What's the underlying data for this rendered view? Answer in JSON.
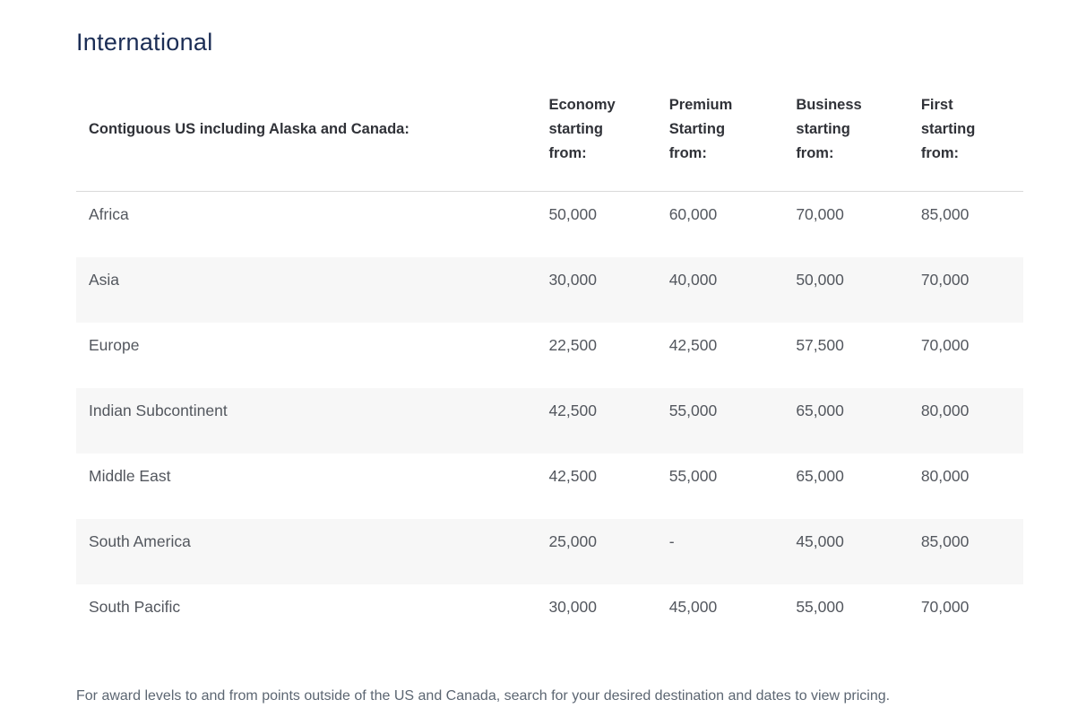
{
  "section": {
    "title": "International",
    "footnote": "For award levels to and from points outside of the US and Canada, search for your desired destination and dates to view pricing."
  },
  "table": {
    "region_header": "Contiguous US including Alaska and Canada:",
    "columns": [
      "Economy starting from:",
      "Premium Starting from:",
      "Business starting from:",
      "First starting from:"
    ],
    "rows": [
      {
        "region": "Africa",
        "values": [
          "50,000",
          "60,000",
          "70,000",
          "85,000"
        ]
      },
      {
        "region": "Asia",
        "values": [
          "30,000",
          "40,000",
          "50,000",
          "70,000"
        ]
      },
      {
        "region": "Europe",
        "values": [
          "22,500",
          "42,500",
          "57,500",
          "70,000"
        ]
      },
      {
        "region": "Indian Subcontinent",
        "values": [
          "42,500",
          "55,000",
          "65,000",
          "80,000"
        ]
      },
      {
        "region": "Middle East",
        "values": [
          "42,500",
          "55,000",
          "65,000",
          "80,000"
        ]
      },
      {
        "region": "South America",
        "values": [
          "25,000",
          "-",
          "45,000",
          "85,000"
        ]
      },
      {
        "region": "South Pacific",
        "values": [
          "30,000",
          "45,000",
          "55,000",
          "70,000"
        ]
      }
    ]
  },
  "colors": {
    "title_navy": "#1b2d55",
    "header_text": "#303238",
    "body_text": "#53575e",
    "stripe": "#f7f7f7",
    "header_border": "#d9d9d9",
    "footnote_text": "#5c6672"
  }
}
